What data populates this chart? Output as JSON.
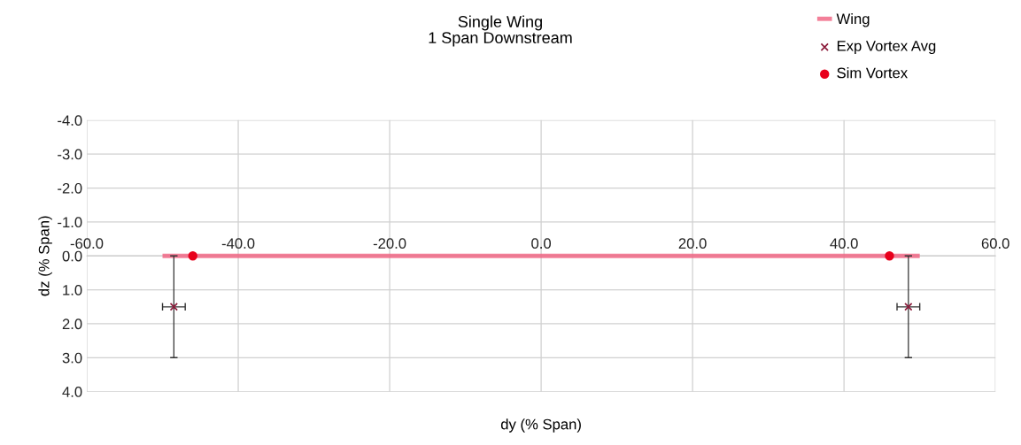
{
  "chart_data": {
    "type": "scatter",
    "title": "Single Wing\n1 Span Downstream",
    "xlabel": "dy (% Span)",
    "ylabel": "dz (% Span)",
    "series": [
      {
        "name": "Wing",
        "type": "line",
        "color": "#f06080",
        "x": [
          -50,
          50
        ],
        "values": [
          0,
          0
        ],
        "marker": "none"
      },
      {
        "name": "Exp Vortex Avg",
        "color": "#8b1a3a",
        "x": [
          -48.5,
          48.5
        ],
        "values": [
          1.5,
          1.5
        ],
        "errors": [
          1.5,
          1.5
        ],
        "xerrors": [
          1.5,
          1.5
        ],
        "marker": "cross"
      },
      {
        "name": "Sim Vortex",
        "color": "#e8001c",
        "x": [
          -46,
          46
        ],
        "values": [
          0.0,
          0.0
        ],
        "marker": "circle"
      }
    ],
    "xlim": [
      -60,
      60
    ],
    "xticks": [
      {
        "value": -60,
        "label": "-60.0"
      },
      {
        "value": -40,
        "label": "-40.0"
      },
      {
        "value": -20,
        "label": "-20.0"
      },
      {
        "value": 0,
        "label": "0.0"
      },
      {
        "value": 20,
        "label": "20.0"
      },
      {
        "value": 40,
        "label": "40.0"
      },
      {
        "value": 60,
        "label": "60.0"
      }
    ],
    "ylim": [
      4,
      -4
    ],
    "yticks": [
      {
        "value": -4,
        "label": "-4.0"
      },
      {
        "value": -3,
        "label": "-3.0"
      },
      {
        "value": -2,
        "label": "-2.0"
      },
      {
        "value": -1,
        "label": "-1.0"
      },
      {
        "value": 0,
        "label": "0.0"
      },
      {
        "value": 1,
        "label": "1.0"
      },
      {
        "value": 2,
        "label": "2.0"
      },
      {
        "value": 3,
        "label": "3.0"
      },
      {
        "value": 4,
        "label": "4.0"
      }
    ],
    "grid": true,
    "legend": "top right"
  }
}
